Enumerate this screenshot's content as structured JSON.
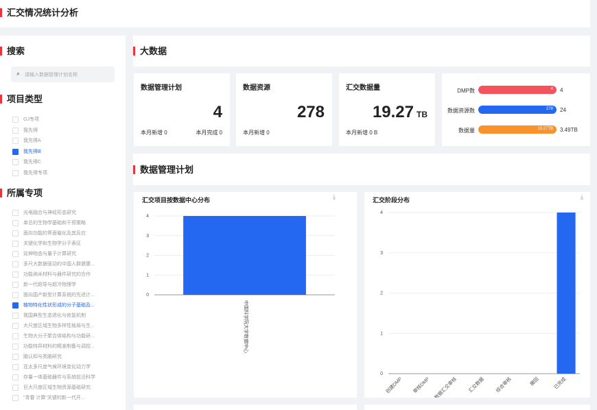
{
  "header": {
    "title": "汇交情况统计分析"
  },
  "sidebar": {
    "search_title": "搜索",
    "search_placeholder": "请输入数据管理计划名称",
    "type_title": "项目类型",
    "types": [
      {
        "label": "GJ专项",
        "checked": false
      },
      {
        "label": "我先得",
        "checked": false
      },
      {
        "label": "我先得A",
        "checked": false
      },
      {
        "label": "我先得B",
        "checked": true
      },
      {
        "label": "我先得C",
        "checked": false
      },
      {
        "label": "我先得专项",
        "checked": false
      }
    ],
    "special_title": "所属专项",
    "specials": [
      {
        "label": "光电融合与神经形态研究",
        "checked": false
      },
      {
        "label": "单总的生物学基础和干预策略",
        "checked": false
      },
      {
        "label": "面向功能的界面催化及其反应",
        "checked": false
      },
      {
        "label": "关键化学和生物学分子表征",
        "checked": false
      },
      {
        "label": "延伸物态与量子计算研究",
        "checked": false
      },
      {
        "label": "多尺大数据驱动的中国人群健康...",
        "checked": false
      },
      {
        "label": "功能纳米材料与器件研究的合作",
        "checked": false
      },
      {
        "label": "新一代超导与超冷物理学",
        "checked": false
      },
      {
        "label": "面向国产新型计算系统的先进计...",
        "checked": false
      },
      {
        "label": "植物特化性状形成的分子基础及...",
        "checked": true
      },
      {
        "label": "我国典型生态退化与修复机制",
        "checked": false
      },
      {
        "label": "大尺度区域生物多样性格局与生...",
        "checked": false
      },
      {
        "label": "生物大分子聚合体结构与功能研...",
        "checked": false
      },
      {
        "label": "功能特异材料的精准制备与调控...",
        "checked": false
      },
      {
        "label": "脑认知与类脑研究",
        "checked": false
      },
      {
        "label": "亚太多尺度气候环境变化动力学",
        "checked": false
      },
      {
        "label": "存量一体基础器件与系统前沿科学",
        "checked": false
      },
      {
        "label": "巨大尺度区域生物资源基础研究",
        "checked": false
      },
      {
        "label": "\"青春 计算\"关键的新一代开...",
        "checked": false
      }
    ]
  },
  "bigdata": {
    "title": "大数据",
    "cards": [
      {
        "title": "数据管理计划",
        "value": 4,
        "notes": [
          "本月新增 0",
          "本月完成 0"
        ]
      },
      {
        "title": "数据资源",
        "value": 278,
        "notes": [
          "本月新增 0"
        ]
      },
      {
        "title": "汇交数据量",
        "value": 19.27,
        "unit": "TB",
        "notes": [
          "本月新增 0 B"
        ]
      }
    ],
    "summary": [
      {
        "name": "DMP数",
        "inner": "4",
        "outer": "4",
        "color": "#f4535b"
      },
      {
        "name": "数据资源数",
        "inner": "278",
        "outer": "24",
        "color": "#2468f2"
      },
      {
        "name": "数据量",
        "inner": "19.27TB",
        "outer": "3.49TB",
        "color": "#f7922c"
      }
    ]
  },
  "plan": {
    "title": "数据管理计划"
  },
  "chart_data": [
    {
      "type": "bar",
      "title": "汇交项目按数据中心分布",
      "categories": [
        "中国科学院大学数据中心"
      ],
      "values": [
        4
      ],
      "color": "#2468f2",
      "ylim": [
        0,
        4
      ],
      "yticks": [
        0,
        1,
        2,
        3,
        4
      ],
      "grid": true,
      "label_rotation": 90
    },
    {
      "type": "bar",
      "title": "汇交阶段分布",
      "categories": [
        "创建DMP",
        "审核DMP",
        "数据汇交审核",
        "汇交数据",
        "综合审核",
        "撤回",
        "已完成"
      ],
      "values": [
        0,
        0,
        0,
        0,
        0,
        0,
        4
      ],
      "color": "#2468f2",
      "ylim": [
        0,
        4
      ],
      "yticks": [
        0,
        1,
        2,
        3,
        4
      ],
      "grid": true,
      "label_rotation": -45
    }
  ]
}
